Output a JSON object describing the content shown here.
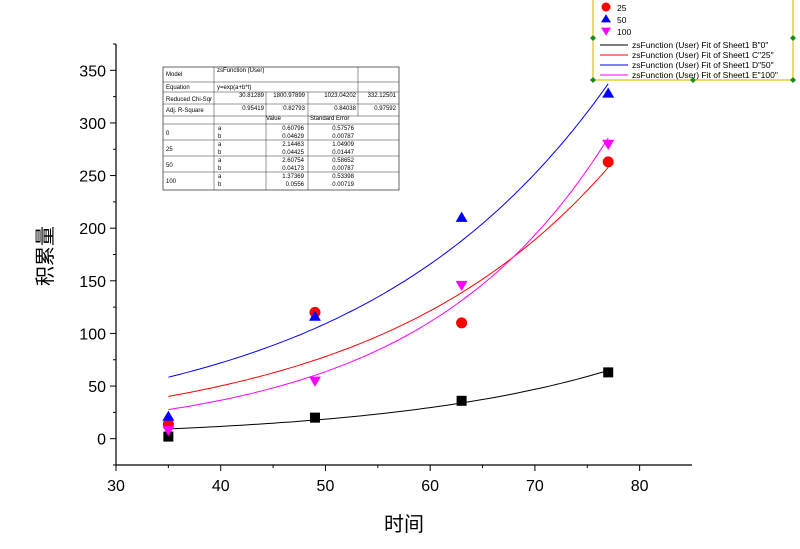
{
  "chart_data": {
    "type": "scatter",
    "title": "",
    "xlabel": "时间",
    "ylabel": "积累量",
    "xlim": [
      30,
      85
    ],
    "ylim": [
      -25,
      375
    ],
    "xticks": [
      "30",
      "40",
      "50",
      "60",
      "70",
      "80"
    ],
    "yticks": [
      "0",
      "50",
      "100",
      "150",
      "200",
      "250",
      "300",
      "350"
    ],
    "grid": false,
    "legend_position": "top-right",
    "series": [
      {
        "name": "0",
        "marker": "square",
        "color": "#000000",
        "x": [
          35,
          49,
          63,
          77
        ],
        "y": [
          2,
          20,
          36,
          63
        ],
        "fit_label": "zsFunction (User) Fit of Sheet1 B\"0\"",
        "fit": {
          "a": 0.60796,
          "b": 0.04629
        }
      },
      {
        "name": "25",
        "marker": "circle",
        "color": "#ff0000",
        "x": [
          35,
          49,
          63,
          77
        ],
        "y": [
          14,
          120,
          110,
          263
        ],
        "fit_label": "zsFunction (User) Fit of Sheet1 C\"25\"",
        "fit": {
          "a": 2.14463,
          "b": 0.04425
        }
      },
      {
        "name": "50",
        "marker": "triangle-up",
        "color": "#0000ff",
        "x": [
          35,
          49,
          63,
          77
        ],
        "y": [
          21,
          116,
          210,
          328
        ],
        "fit_label": "zsFunction (User) Fit of Sheet1 D\"50\"",
        "fit": {
          "a": 2.60754,
          "b": 0.04173
        }
      },
      {
        "name": "100",
        "marker": "triangle-down",
        "color": "#ff00ff",
        "x": [
          35,
          49,
          63,
          77
        ],
        "y": [
          8,
          55,
          146,
          280
        ],
        "fit_label": "zsFunction (User) Fit of Sheet1 E\"100\"",
        "fit": {
          "a": 1.37369,
          "b": 0.0556
        }
      }
    ]
  },
  "legend": {
    "entries": [
      "25",
      "50",
      "100"
    ],
    "fit_entries": [
      "zsFunction (User) Fit of Sheet1 B\"0\"",
      "zsFunction (User) Fit of Sheet1 C\"25\"",
      "zsFunction (User) Fit of Sheet1 D\"50\"",
      "zsFunction (User) Fit of Sheet1 E\"100\""
    ],
    "fit_colors": [
      "#000000",
      "#ff0000",
      "#0000ff",
      "#ff00ff"
    ],
    "symbols": [
      {
        "shape": "circle",
        "color": "#ff0000"
      },
      {
        "shape": "triangle-up",
        "color": "#0000ff"
      },
      {
        "shape": "triangle-down",
        "color": "#ff00ff"
      }
    ]
  },
  "fit_table": {
    "model_label": "Model",
    "model_value": "zsFunction (User)",
    "equation_label": "Equation",
    "equation_value": "y=exp(a+b*t)",
    "chisqr_label": "Reduced Chi-Sqr",
    "chisqr_values": [
      "30.81289",
      "1800.97899",
      "1023.04202",
      "332.12501"
    ],
    "r2_label": "Adj. R-Square",
    "r2_values": [
      "0.95419",
      "0.82793",
      "0.84038",
      "0.97592"
    ],
    "value_header": "Value",
    "error_header": "Standard Error",
    "groups": [
      {
        "name": "0",
        "rows": [
          {
            "param": "a",
            "value": "0.60796",
            "error": "0.57576"
          },
          {
            "param": "b",
            "value": "0.04629",
            "error": "0.00787"
          }
        ]
      },
      {
        "name": "25",
        "rows": [
          {
            "param": "a",
            "value": "2.14463",
            "error": "1.04909"
          },
          {
            "param": "b",
            "value": "0.04425",
            "error": "0.01447"
          }
        ]
      },
      {
        "name": "50",
        "rows": [
          {
            "param": "a",
            "value": "2.60754",
            "error": "0.58652"
          },
          {
            "param": "b",
            "value": "0.04173",
            "error": "0.00787"
          }
        ]
      },
      {
        "name": "100",
        "rows": [
          {
            "param": "a",
            "value": "1.37369",
            "error": "0.53398"
          },
          {
            "param": "b",
            "value": "0.0556",
            "error": "0.00719"
          }
        ]
      }
    ]
  }
}
